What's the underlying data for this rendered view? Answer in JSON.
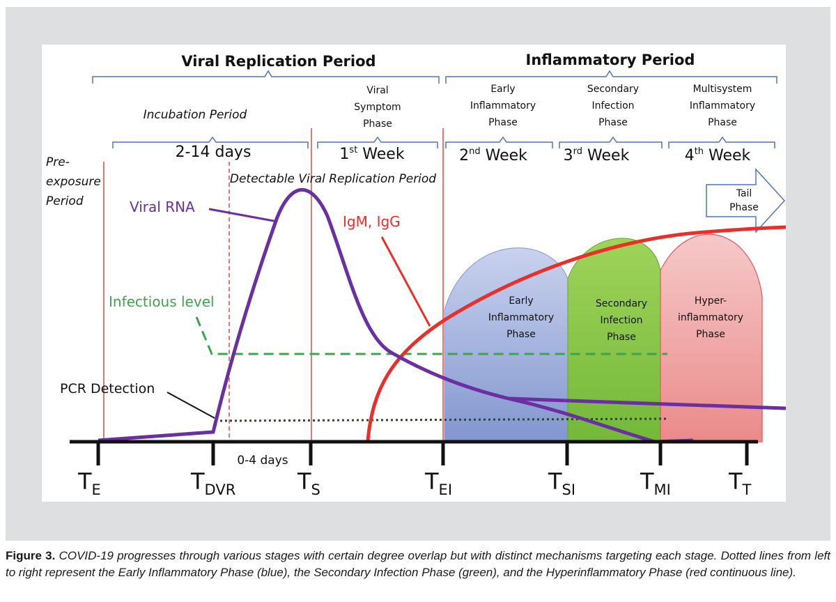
{
  "periods": {
    "viral_replication": "Viral Replication Period",
    "inflammatory": "Inflammatory Period"
  },
  "stages": {
    "incubation": "Incubation Period",
    "viral_symptom": [
      "Viral",
      "Symptom",
      "Phase"
    ],
    "early_inflammatory": [
      "Early",
      "Inflammatory",
      "Phase"
    ],
    "secondary_infection": [
      "Secondary",
      "Infection",
      "Phase"
    ],
    "multisystem": [
      "Multisystem",
      "Inflammatory",
      "Phase"
    ]
  },
  "durations": {
    "days_2_14": "2-14 days",
    "week1_num": "1",
    "week1_sup": "st",
    "week1_word": " Week",
    "week2_num": "2",
    "week2_sup": "nd",
    "week2_word": " Week",
    "week3_num": "3",
    "week3_sup": "rd",
    "week3_word": " Week",
    "week4_num": "4",
    "week4_sup": "th",
    "week4_word": " Week"
  },
  "labels": {
    "pre_exposure": [
      "Pre-",
      "exposure",
      "Period"
    ],
    "detectable": "Detectable Viral Replication Period",
    "viral_rna": "Viral RNA",
    "igm_igg": "IgM, IgG",
    "infectious_level": "Infectious level",
    "pcr_detection": "PCR Detection",
    "tail_phase": [
      "Tail",
      "Phase"
    ],
    "early_phase_dome": [
      "Early",
      "Inflammatory",
      "Phase"
    ],
    "secondary_phase_dome": [
      "Secondary",
      "Infection",
      "Phase"
    ],
    "hyper_phase_dome": [
      "Hyper-",
      "inflammatory",
      "Phase"
    ],
    "days_0_4": "0-4 days"
  },
  "timepoints": [
    {
      "main": "T",
      "sub": "E"
    },
    {
      "main": "T",
      "sub": "DVR"
    },
    {
      "main": "T",
      "sub": "S"
    },
    {
      "main": "T",
      "sub": "EI"
    },
    {
      "main": "T",
      "sub": "SI"
    },
    {
      "main": "T",
      "sub": "MI"
    },
    {
      "main": "T",
      "sub": "T"
    }
  ],
  "colors": {
    "viral_rna": "#6a2fa0",
    "igm_igg": "#e8302a",
    "infectious": "#3fa34d",
    "early_dome": "#9fb0dc",
    "secondary_dome": "#8cc84b",
    "hyper_dome": "#f0a0a0",
    "bracket": "#4a73c4"
  },
  "caption": {
    "label": "Figure 3.",
    "text": " COVID-19 progresses through various stages with certain degree overlap but with distinct mechanisms targeting each stage. Dotted lines from left to right represent the Early Inflammatory Phase (blue), the Secondary Infection Phase (green), and the Hyperinflammatory Phase (red continuous line)."
  }
}
